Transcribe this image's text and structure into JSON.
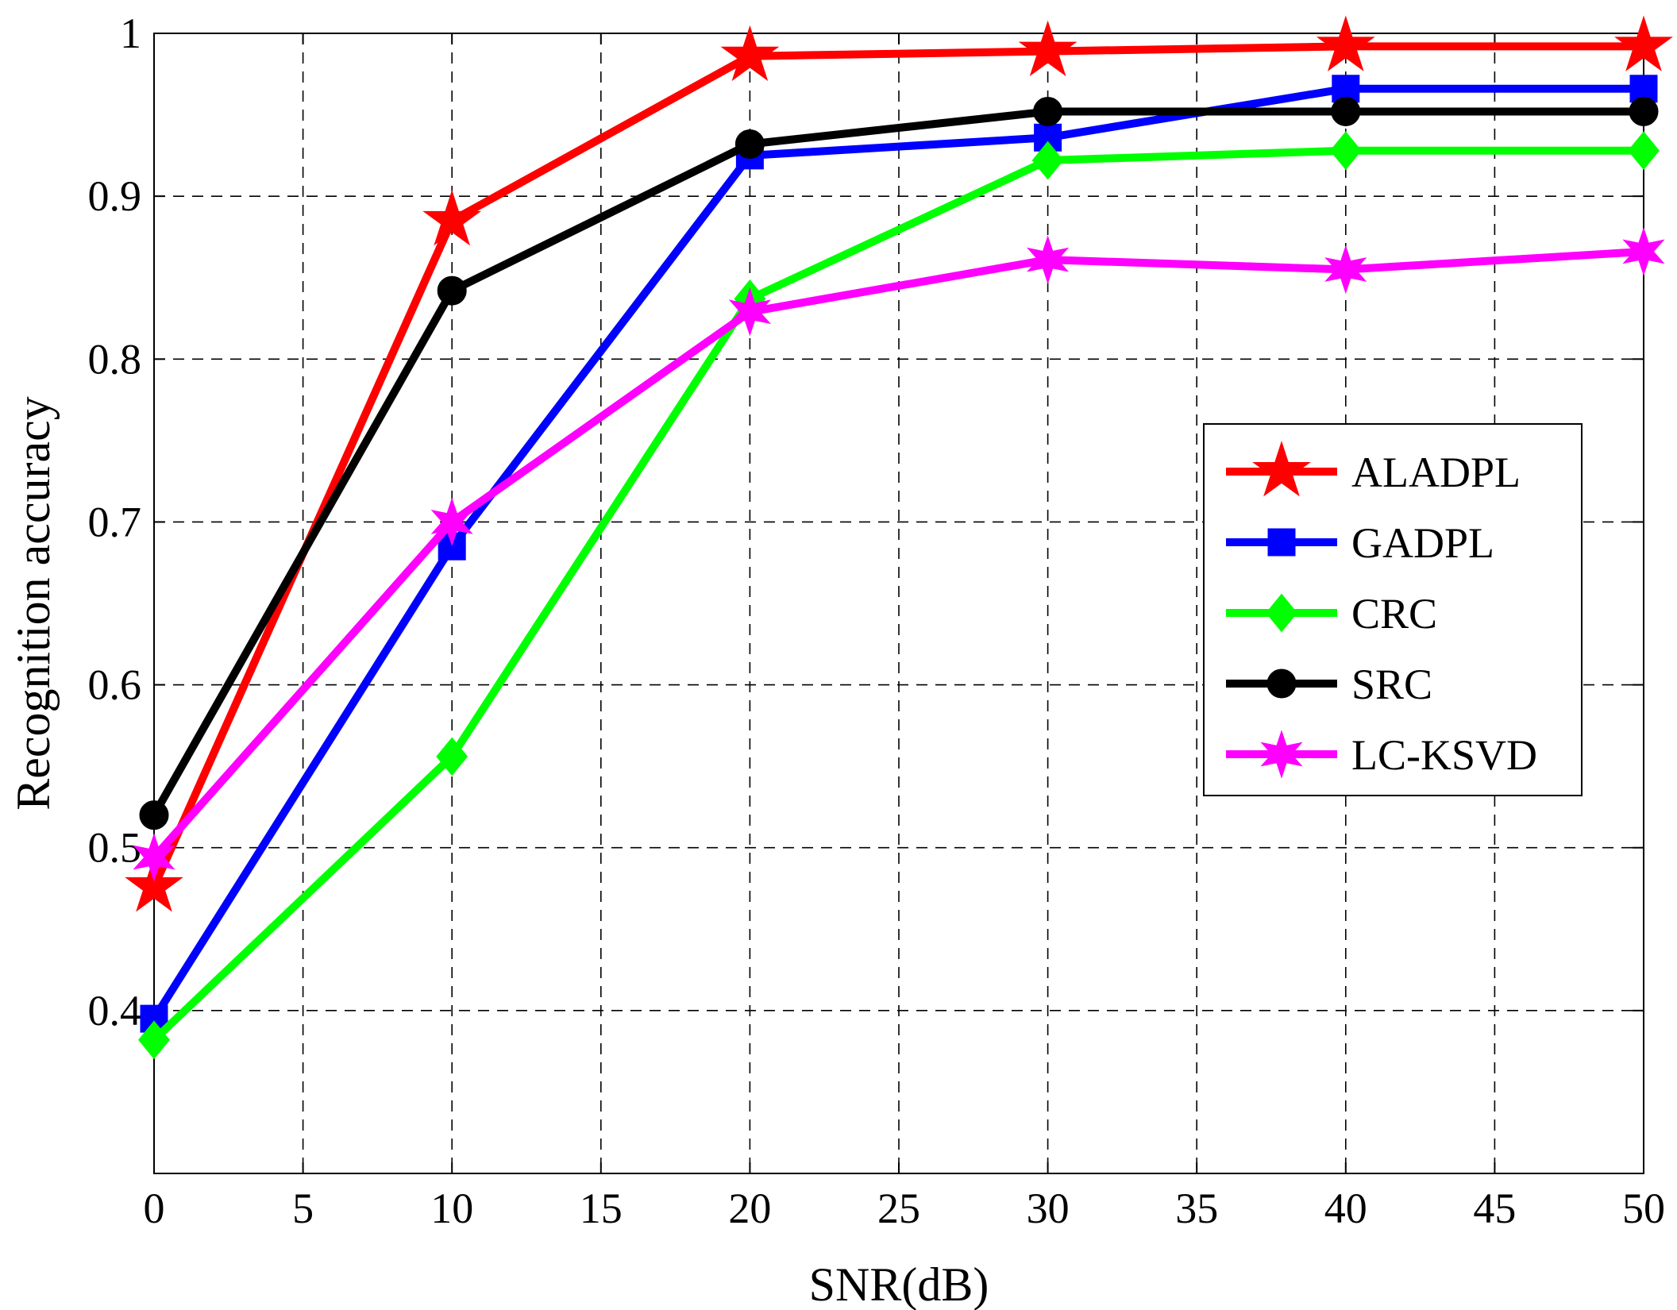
{
  "chart_data": {
    "type": "line",
    "title": "",
    "xlabel": "SNR(dB)",
    "ylabel": "Recognition accuracy",
    "xlim": [
      0,
      50
    ],
    "ylim": [
      0.3,
      1.0
    ],
    "xticks": [
      0,
      5,
      10,
      15,
      20,
      25,
      30,
      35,
      40,
      45,
      50
    ],
    "xtick_labels": [
      "0",
      "5",
      "10",
      "15",
      "20",
      "25",
      "30",
      "35",
      "40",
      "45",
      "50"
    ],
    "yticks": [
      0.4,
      0.5,
      0.6,
      0.7,
      0.8,
      0.9,
      1.0
    ],
    "ytick_labels": [
      "0.4",
      "0.5",
      "0.6",
      "0.7",
      "0.8",
      "0.9",
      "1"
    ],
    "grid": true,
    "legend_position": "right",
    "x": [
      0,
      10,
      20,
      30,
      40,
      50
    ],
    "series": [
      {
        "name": "ALADPL",
        "color": "#ff0000",
        "marker": "star",
        "values": [
          0.476,
          0.885,
          0.986,
          0.989,
          0.992,
          0.992
        ]
      },
      {
        "name": "GADPL",
        "color": "#0000ff",
        "marker": "square",
        "values": [
          0.395,
          0.685,
          0.925,
          0.936,
          0.966,
          0.966
        ]
      },
      {
        "name": "CRC",
        "color": "#00ff00",
        "marker": "diamond",
        "values": [
          0.382,
          0.556,
          0.837,
          0.922,
          0.928,
          0.928
        ]
      },
      {
        "name": "SRC",
        "color": "#000000",
        "marker": "circle",
        "values": [
          0.52,
          0.842,
          0.932,
          0.952,
          0.952,
          0.952
        ]
      },
      {
        "name": "LC-KSVD",
        "color": "#ff00ff",
        "marker": "hexstar",
        "values": [
          0.494,
          0.7,
          0.829,
          0.861,
          0.855,
          0.866
        ]
      }
    ]
  }
}
